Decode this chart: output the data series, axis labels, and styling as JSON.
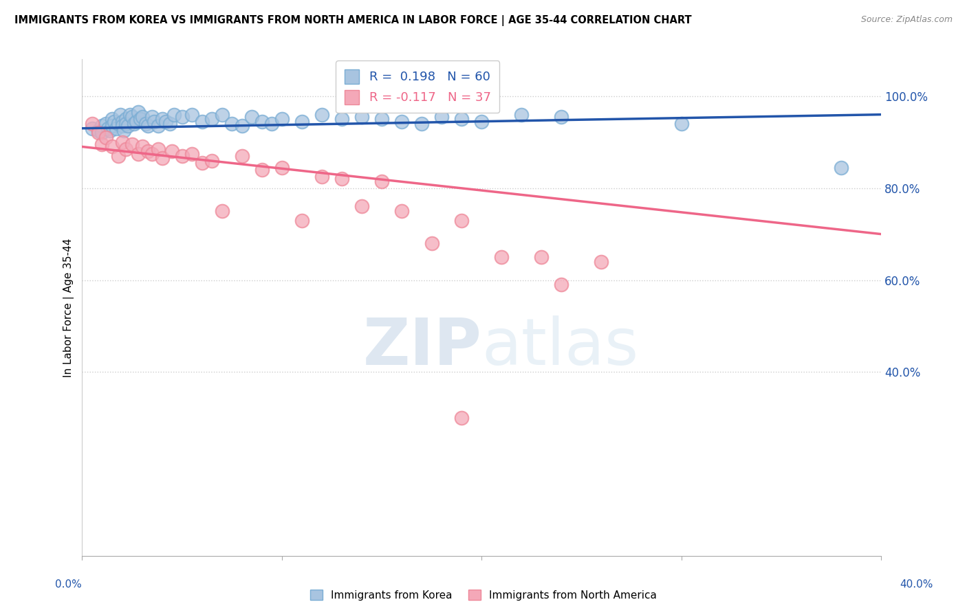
{
  "title": "IMMIGRANTS FROM KOREA VS IMMIGRANTS FROM NORTH AMERICA IN LABOR FORCE | AGE 35-44 CORRELATION CHART",
  "source": "Source: ZipAtlas.com",
  "ylabel": "In Labor Force | Age 35-44",
  "ymin": 0.0,
  "ymax": 1.08,
  "xmin": 0.0,
  "xmax": 0.4,
  "blue_R": 0.198,
  "blue_N": 60,
  "pink_R": -0.117,
  "pink_N": 37,
  "blue_color": "#A8C4E0",
  "pink_color": "#F4A8B8",
  "blue_edge_color": "#7AADD4",
  "pink_edge_color": "#EE8899",
  "blue_line_color": "#2255AA",
  "pink_line_color": "#EE6688",
  "watermark_zip": "ZIP",
  "watermark_atlas": "atlas",
  "blue_scatter_x": [
    0.005,
    0.008,
    0.01,
    0.01,
    0.012,
    0.013,
    0.014,
    0.015,
    0.015,
    0.016,
    0.017,
    0.018,
    0.019,
    0.02,
    0.02,
    0.021,
    0.022,
    0.022,
    0.023,
    0.024,
    0.025,
    0.026,
    0.027,
    0.028,
    0.029,
    0.03,
    0.032,
    0.033,
    0.035,
    0.036,
    0.038,
    0.04,
    0.042,
    0.044,
    0.046,
    0.05,
    0.055,
    0.06,
    0.065,
    0.07,
    0.075,
    0.08,
    0.085,
    0.09,
    0.095,
    0.1,
    0.11,
    0.12,
    0.13,
    0.14,
    0.15,
    0.16,
    0.17,
    0.18,
    0.19,
    0.2,
    0.22,
    0.24,
    0.3,
    0.38
  ],
  "blue_scatter_y": [
    0.93,
    0.925,
    0.935,
    0.92,
    0.94,
    0.93,
    0.925,
    0.95,
    0.935,
    0.945,
    0.93,
    0.94,
    0.96,
    0.945,
    0.935,
    0.925,
    0.95,
    0.94,
    0.935,
    0.96,
    0.955,
    0.94,
    0.945,
    0.965,
    0.95,
    0.955,
    0.94,
    0.935,
    0.955,
    0.945,
    0.935,
    0.95,
    0.945,
    0.94,
    0.96,
    0.955,
    0.96,
    0.945,
    0.95,
    0.96,
    0.94,
    0.935,
    0.955,
    0.945,
    0.94,
    0.95,
    0.945,
    0.96,
    0.95,
    0.955,
    0.95,
    0.945,
    0.94,
    0.955,
    0.95,
    0.945,
    0.96,
    0.955,
    0.94,
    0.845
  ],
  "pink_scatter_x": [
    0.005,
    0.008,
    0.01,
    0.012,
    0.015,
    0.018,
    0.02,
    0.022,
    0.025,
    0.028,
    0.03,
    0.033,
    0.035,
    0.038,
    0.04,
    0.045,
    0.05,
    0.055,
    0.06,
    0.065,
    0.07,
    0.08,
    0.09,
    0.1,
    0.11,
    0.12,
    0.13,
    0.14,
    0.15,
    0.16,
    0.175,
    0.19,
    0.21,
    0.23,
    0.24,
    0.26,
    0.19
  ],
  "pink_scatter_y": [
    0.94,
    0.92,
    0.895,
    0.91,
    0.89,
    0.87,
    0.9,
    0.885,
    0.895,
    0.875,
    0.89,
    0.88,
    0.875,
    0.885,
    0.865,
    0.88,
    0.87,
    0.875,
    0.855,
    0.86,
    0.75,
    0.87,
    0.84,
    0.845,
    0.73,
    0.825,
    0.82,
    0.76,
    0.815,
    0.75,
    0.68,
    0.73,
    0.65,
    0.65,
    0.59,
    0.64,
    0.3
  ],
  "blue_trend_x": [
    0.0,
    0.4
  ],
  "blue_trend_y": [
    0.93,
    0.96
  ],
  "pink_trend_x": [
    0.0,
    0.4
  ],
  "pink_trend_y": [
    0.89,
    0.7
  ],
  "yticks": [
    0.4,
    0.6,
    0.8,
    1.0
  ],
  "ytick_labels": [
    "40.0%",
    "60.0%",
    "80.0%",
    "100.0%"
  ],
  "xtick_positions": [
    0.0,
    0.1,
    0.2,
    0.3,
    0.4
  ]
}
